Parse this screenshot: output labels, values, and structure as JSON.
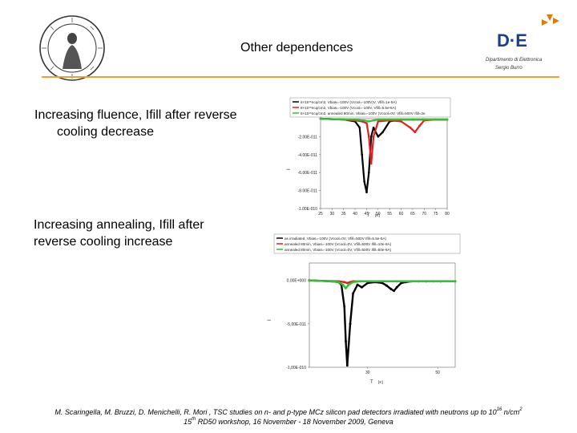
{
  "slide": {
    "title": "Other dependences",
    "bullets": [
      {
        "line1": "Increasing fluence, Ifill after reverse",
        "line2": "cooling decrease"
      },
      {
        "line1": "Increasing annealing, Ifill after",
        "line2": "reverse cooling increase"
      }
    ],
    "footer": {
      "line1_pre": "M. Scaringella, M. Bruzzi, D. Menichelli, R. Mori , TSC studies on n- and p-type MCz silicon pad detectors irradiated with neutrons up to 10",
      "line1_exp": "16",
      "line1_mid": " n/cm",
      "line1_exp2": "2",
      "line2_pre": "15",
      "line2_exp": "th",
      "line2_post": " RD50 workshop, 16 November - 18 November 2009, Geneva"
    },
    "logo": {
      "text": "D·E",
      "sub1": "Dipartimento di Elettronica",
      "sub2": "Sergio Burro"
    },
    "colors": {
      "accent_rule": "#f0a030",
      "logo_blue": "#1a3f8f",
      "logo_orange": "#e07a10"
    }
  },
  "chart_data": [
    {
      "type": "line",
      "xlabel": "T",
      "xunit": "[K]",
      "ylabel": "I",
      "xlim": [
        25,
        80
      ],
      "ylim": [
        -1e-10,
        0
      ],
      "xticks": [
        "25",
        "30",
        "35",
        "40",
        "45",
        "50",
        "55",
        "60",
        "65",
        "70",
        "75",
        "80"
      ],
      "yticks": [
        "-2.00E-011",
        "-4.00E-011",
        "-6.00E-011",
        "-8.00E-011",
        "-1.00E-010"
      ],
      "ytick_values": [
        -2e-11,
        -4e-11,
        -6e-11,
        -8e-11,
        -1e-10
      ],
      "legend": "top",
      "series": [
        {
          "name": "6×10¹⁵ncq/cm2, Vbias=-100V (Vcool=-100V)V, Vfill=1e-5A)",
          "color": "#000000",
          "x": [
            25,
            35,
            40,
            42,
            43,
            44,
            45,
            46,
            47,
            48,
            50,
            52,
            55,
            60,
            65,
            70,
            75,
            80
          ],
          "y": [
            0,
            -1e-12,
            -3e-12,
            -1e-11,
            -4e-11,
            -7e-11,
            -8.2e-11,
            -6e-11,
            -2e-11,
            -1e-11,
            -2e-11,
            -1.5e-11,
            -3e-12,
            -1e-12,
            -1e-12,
            -1e-12,
            -1e-12,
            -1e-12
          ]
        },
        {
          "name": "8×10¹⁵ncq/cm2, Vbias=-100V (Vcool=-100V, Vfill=5.5e-6A)",
          "color": "#e02020",
          "x": [
            25,
            35,
            40,
            43,
            45,
            46,
            47,
            48,
            50,
            55,
            60,
            64,
            66,
            68,
            70,
            75,
            80
          ],
          "y": [
            0,
            -1e-12,
            -2e-12,
            -3e-12,
            -5e-12,
            -2e-11,
            -5e-11,
            -2e-11,
            -3e-12,
            -2e-12,
            -3e-12,
            -1e-11,
            -1.5e-11,
            -8e-12,
            -2e-12,
            -1e-12,
            -1e-12
          ]
        },
        {
          "name": "6×10¹⁵ncq/cm2, annealed 80min, Vbias=-100V (Vcool=0V, Vfill=500V Ifill=2e",
          "color": "#30c030",
          "x": [
            25,
            35,
            40,
            44,
            46,
            48,
            50,
            55,
            60,
            65,
            70,
            75,
            80
          ],
          "y": [
            0,
            -1e-12,
            -1e-12,
            -2e-12,
            -3e-12,
            -2e-12,
            -1e-12,
            -1e-12,
            -1e-12,
            -1e-12,
            -1e-12,
            -1e-12,
            -1e-12
          ]
        }
      ]
    },
    {
      "type": "line",
      "xlabel": "T",
      "xunit": "[K]",
      "ylabel": "I",
      "xlim": [
        0,
        100
      ],
      "ylim": [
        -1e-10,
        2e-11
      ],
      "xticks": [
        "30",
        "50"
      ],
      "yticks": [
        "0,00E+000",
        "-5,00E-011",
        "-1,00E-010"
      ],
      "ytick_values": [
        0,
        -5e-11,
        -1e-10
      ],
      "legend": "top",
      "series": [
        {
          "name": "as irradiated, Vbias=-100V (Vcool=0V, Vfill=500V Ifill=5.5e-5A)",
          "color": "#000000",
          "x": [
            0,
            15,
            20,
            22,
            24,
            25,
            26,
            28,
            30,
            33,
            36,
            40,
            45,
            50,
            53,
            56,
            58,
            60,
            63,
            66,
            70,
            75,
            80,
            85,
            90,
            100
          ],
          "y": [
            0,
            -1e-12,
            -2e-12,
            -5e-12,
            -3e-11,
            -7e-11,
            -9.8e-11,
            -5e-11,
            -1.5e-11,
            -5e-12,
            -8e-12,
            -3e-12,
            -2e-12,
            -3e-12,
            -6e-12,
            -1e-11,
            -1.2e-11,
            -8e-12,
            -3e-12,
            -2e-12,
            -1e-12,
            -1e-12,
            -1e-12,
            -1e-12,
            -1e-12,
            -1e-12
          ]
        },
        {
          "name": "annealed 80min, Vbias=-100V (Vcool=0V, Vfill=500V Ifill=10e-6A)",
          "color": "#e02020",
          "x": [
            0,
            20,
            24,
            26,
            28,
            30,
            35,
            40,
            50,
            60,
            70,
            80,
            90,
            100
          ],
          "y": [
            0,
            -1e-12,
            -2e-12,
            -3e-12,
            -2e-12,
            -1e-12,
            -1e-12,
            -1e-12,
            -1e-12,
            -1e-12,
            -1e-12,
            -1e-12,
            -1e-12,
            -1e-12
          ]
        },
        {
          "name": "annealed 80min, Vbias=-100V (Vcool=0V, Vfill=500V Ifill=50e-6A)",
          "color": "#30c030",
          "x": [
            0,
            15,
            20,
            23,
            25,
            27,
            30,
            35,
            40,
            50,
            60,
            70,
            80,
            90,
            100
          ],
          "y": [
            0,
            -1e-12,
            -2e-12,
            -5e-12,
            -9e-12,
            -5e-12,
            -2e-12,
            -1e-12,
            -1e-12,
            -1e-12,
            -1e-12,
            -1e-12,
            -1e-12,
            -1e-12,
            -1e-12
          ]
        }
      ]
    }
  ]
}
